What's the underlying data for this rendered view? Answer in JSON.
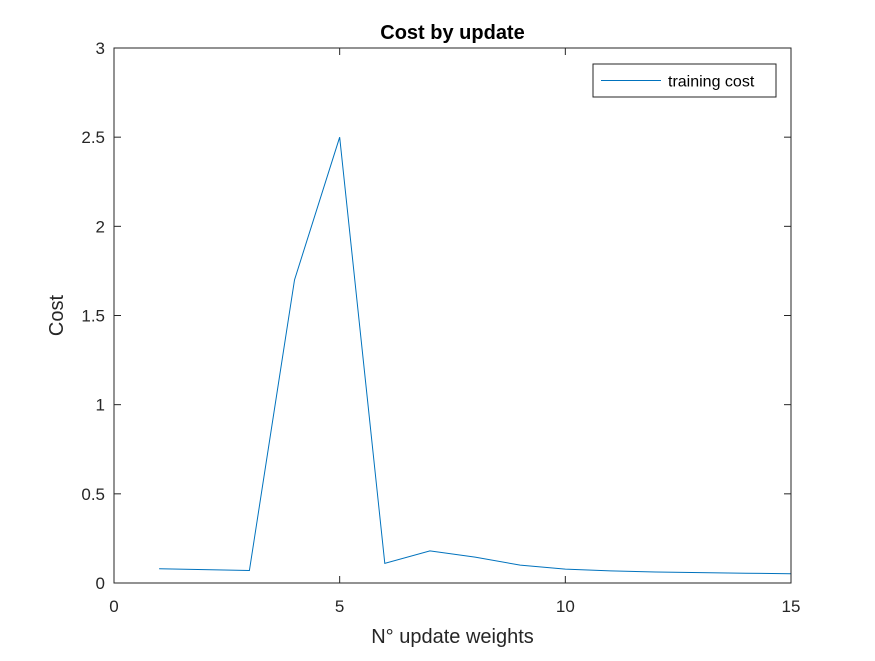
{
  "chart_data": {
    "type": "line",
    "title": "Cost by update",
    "xlabel": "N° update weights",
    "ylabel": "Cost",
    "xlim": [
      0,
      15
    ],
    "ylim": [
      0,
      3
    ],
    "xticks": [
      0,
      5,
      10,
      15
    ],
    "yticks": [
      0,
      0.5,
      1,
      1.5,
      2,
      2.5,
      3
    ],
    "xtick_labels": [
      "0",
      "5",
      "10",
      "15"
    ],
    "ytick_labels": [
      "0",
      "0.5",
      "1",
      "1.5",
      "2",
      "2.5",
      "3"
    ],
    "grid": false,
    "box": true,
    "legend_position": "top-right",
    "series": [
      {
        "name": "training cost",
        "color": "#0072BD",
        "x": [
          1,
          2,
          3,
          4,
          5,
          6,
          7,
          8,
          9,
          10,
          11,
          12,
          13,
          14,
          15
        ],
        "y": [
          0.08,
          0.075,
          0.07,
          1.7,
          2.5,
          0.11,
          0.18,
          0.145,
          0.1,
          0.078,
          0.068,
          0.062,
          0.058,
          0.055,
          0.052
        ]
      }
    ]
  }
}
